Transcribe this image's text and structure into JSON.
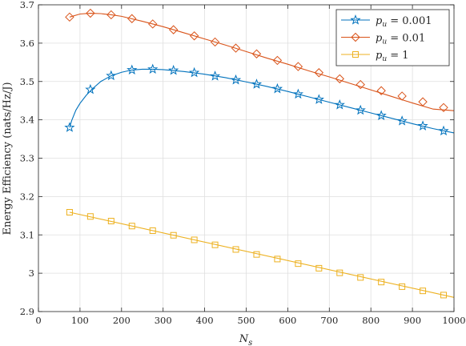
{
  "chart_data": {
    "type": "line",
    "xlabel": "N_s",
    "ylabel": "Energy Efficiency (nats/Hz/J)",
    "xlim": [
      0,
      1000
    ],
    "ylim": [
      2.9,
      3.7
    ],
    "xticks": [
      0,
      100,
      200,
      300,
      400,
      500,
      600,
      700,
      800,
      900,
      1000
    ],
    "yticks": [
      2.9,
      3.0,
      3.1,
      3.2,
      3.3,
      3.4,
      3.5,
      3.6,
      3.7
    ],
    "xtick_labels": [
      "0",
      "100",
      "200",
      "300",
      "400",
      "500",
      "600",
      "700",
      "800",
      "900",
      "1000"
    ],
    "ytick_labels": [
      "2.9",
      "3",
      "3.1",
      "3.2",
      "3.3",
      "3.4",
      "3.5",
      "3.6",
      "3.7"
    ],
    "grid": true,
    "legend_position": "top-right",
    "series": [
      {
        "name": "p_u = 0.001",
        "legend_var": "p",
        "legend_sub": "u",
        "legend_rest": " = 0.001",
        "color": "#0072bd",
        "marker": "star",
        "curve": {
          "x": [
            75,
            80,
            90,
            100,
            115,
            130,
            150,
            175,
            200,
            225,
            250,
            275,
            300,
            350,
            400,
            450,
            500,
            550,
            600,
            650,
            700,
            750,
            800,
            850,
            900,
            950,
            1000
          ],
          "y": [
            3.38,
            3.398,
            3.425,
            3.443,
            3.464,
            3.481,
            3.5,
            3.515,
            3.524,
            3.53,
            3.532,
            3.532,
            3.531,
            3.526,
            3.519,
            3.51,
            3.499,
            3.487,
            3.474,
            3.46,
            3.446,
            3.432,
            3.418,
            3.404,
            3.39,
            3.377,
            3.366
          ]
        },
        "markers": {
          "x": [
            75,
            125,
            175,
            225,
            275,
            325,
            375,
            425,
            475,
            525,
            575,
            625,
            675,
            725,
            775,
            825,
            875,
            925,
            975
          ],
          "y": [
            3.38,
            3.479,
            3.515,
            3.53,
            3.532,
            3.529,
            3.523,
            3.514,
            3.504,
            3.493,
            3.481,
            3.467,
            3.453,
            3.439,
            3.425,
            3.411,
            3.397,
            3.384,
            3.371
          ]
        }
      },
      {
        "name": "p_u = 0.01",
        "legend_var": "p",
        "legend_sub": "u",
        "legend_rest": " = 0.01",
        "color": "#d95319",
        "marker": "diamond",
        "curve": {
          "x": [
            75,
            100,
            125,
            150,
            175,
            200,
            250,
            300,
            350,
            400,
            450,
            500,
            550,
            600,
            650,
            700,
            750,
            800,
            850,
            900,
            950,
            1000
          ],
          "y": [
            3.668,
            3.676,
            3.678,
            3.677,
            3.674,
            3.67,
            3.657,
            3.643,
            3.627,
            3.611,
            3.595,
            3.578,
            3.561,
            3.545,
            3.528,
            3.512,
            3.495,
            3.478,
            3.461,
            3.444,
            3.428,
            3.424
          ]
        },
        "markers": {
          "x": [
            75,
            125,
            175,
            225,
            275,
            325,
            375,
            425,
            475,
            525,
            575,
            625,
            675,
            725,
            775,
            825,
            875,
            925,
            975
          ],
          "y": [
            3.668,
            3.678,
            3.674,
            3.664,
            3.65,
            3.635,
            3.619,
            3.603,
            3.587,
            3.572,
            3.555,
            3.539,
            3.523,
            3.507,
            3.492,
            3.476,
            3.462,
            3.447,
            3.432
          ]
        }
      },
      {
        "name": "p_u = 1",
        "legend_var": "p",
        "legend_sub": "u",
        "legend_rest": " = 1",
        "color": "#edb120",
        "marker": "square",
        "curve": {
          "x": [
            75,
            1000
          ],
          "y": [
            3.159,
            2.937
          ]
        },
        "markers": {
          "x": [
            75,
            125,
            175,
            225,
            275,
            325,
            375,
            425,
            475,
            525,
            575,
            625,
            675,
            725,
            775,
            825,
            875,
            925,
            975
          ],
          "y": [
            3.159,
            3.148,
            3.136,
            3.123,
            3.111,
            3.099,
            3.087,
            3.074,
            3.062,
            3.049,
            3.037,
            3.025,
            3.013,
            3.001,
            2.989,
            2.977,
            2.965,
            2.954,
            2.943
          ]
        }
      }
    ]
  }
}
